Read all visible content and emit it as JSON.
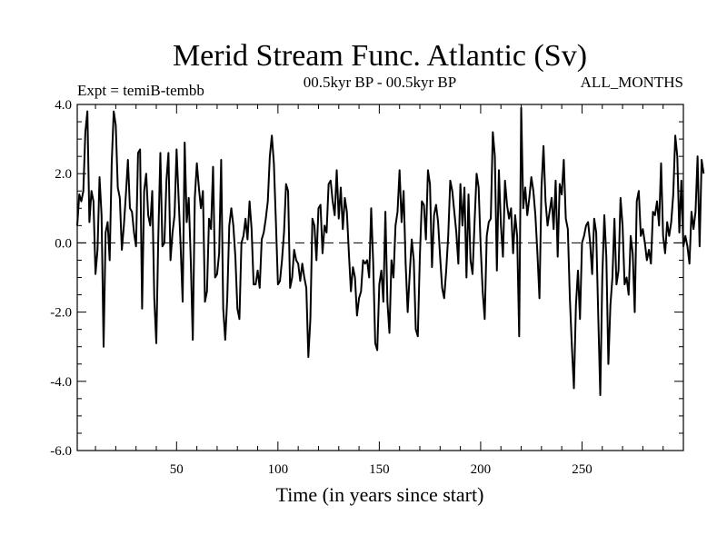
{
  "chart_data": {
    "type": "line",
    "title": "Merid Stream Func. Atlantic (Sv)",
    "header_left": "Expt = temiB-tembb",
    "header_center": "00.5kyr BP - 00.5kyr BP",
    "header_right": "ALL_MONTHS",
    "xlabel": "Time (in years since start)",
    "ylabel": "",
    "xlim": [
      1,
      300
    ],
    "ylim": [
      -6.0,
      4.0
    ],
    "xticks": [
      50,
      100,
      150,
      200,
      250
    ],
    "yticks": [
      -6.0,
      -4.0,
      -2.0,
      0.0,
      2.0,
      4.0
    ],
    "ytick_labels": [
      "-6.0",
      "-4.0",
      "-2.0",
      "0.0",
      "2.0",
      "4.0"
    ],
    "zero_line": true,
    "grid": false,
    "series": [
      {
        "values": [
          0.5,
          1.4,
          1.2,
          1.5,
          3.2,
          3.8,
          0.6,
          1.5,
          1.2,
          -0.9,
          -0.2,
          1.9,
          0.8,
          -3.0,
          0.3,
          0.6,
          -0.5,
          2.3,
          3.8,
          3.4,
          1.6,
          1.3,
          -0.2,
          0.5,
          1.4,
          2.4,
          1.0,
          0.9,
          0.3,
          -0.1,
          2.6,
          2.7,
          -1.9,
          1.5,
          2.0,
          0.8,
          0.5,
          1.5,
          -1.6,
          -2.9,
          0.2,
          2.6,
          -0.1,
          0.0,
          1.8,
          2.6,
          -0.5,
          0.3,
          0.8,
          2.7,
          1.3,
          -0.1,
          -1.7,
          2.9,
          0.6,
          1.3,
          -0.5,
          -2.8,
          1.3,
          2.3,
          1.6,
          1.0,
          1.5,
          -1.7,
          -1.4,
          0.7,
          0.4,
          2.2,
          -1.0,
          -0.9,
          -0.3,
          2.4,
          -1.9,
          -2.8,
          -1.6,
          0.5,
          1.0,
          0.5,
          -0.4,
          -1.9,
          -2.2,
          0.0,
          0.2,
          0.7,
          0.1,
          1.2,
          0.4,
          -1.2,
          -1.2,
          -0.8,
          -1.3,
          0.1,
          0.3,
          0.7,
          1.2,
          2.5,
          3.1,
          2.3,
          0.6,
          -1.2,
          -1.1,
          -0.5,
          0.3,
          1.7,
          1.5,
          -1.3,
          -1.0,
          -0.2,
          -0.5,
          -0.6,
          -1.1,
          -0.6,
          -1.0,
          -1.3,
          -3.3,
          -2.2,
          0.7,
          0.5,
          -0.5,
          1.0,
          1.1,
          -0.3,
          0.5,
          0.3,
          1.7,
          1.8,
          1.2,
          0.8,
          2.1,
          0.7,
          1.6,
          0.4,
          1.3,
          0.9,
          -0.3,
          -1.4,
          -0.7,
          -1.0,
          -2.1,
          -1.6,
          -1.4,
          -0.5,
          -0.6,
          -0.5,
          -1.0,
          1.0,
          -0.6,
          -2.9,
          -3.1,
          -1.2,
          -0.8,
          -1.7,
          0.9,
          -1.7,
          -2.6,
          -0.5,
          -1.0,
          0.5,
          0.9,
          2.1,
          0.6,
          1.5,
          -0.6,
          -2.0,
          -0.9,
          0.1,
          -0.5,
          -2.5,
          -2.7,
          -0.4,
          1.2,
          1.1,
          0.1,
          2.1,
          1.7,
          -0.7,
          0.8,
          1.1,
          0.6,
          -0.4,
          -1.3,
          -1.6,
          -0.8,
          0.2,
          1.8,
          1.5,
          0.9,
          0.3,
          -0.6,
          1.7,
          0.5,
          1.6,
          -1.0,
          1.4,
          -0.5,
          -0.9,
          0.6,
          2.0,
          1.6,
          -0.1,
          -1.4,
          -2.2,
          0.2,
          0.6,
          0.7,
          3.2,
          2.5,
          -0.8,
          2.1,
          0.5,
          -0.4,
          1.8,
          1.1,
          0.7,
          1.0,
          -0.3,
          0.8,
          0.2,
          -2.7,
          3.9,
          1.0,
          1.6,
          0.8,
          1.3,
          1.9,
          1.5,
          0.8,
          -0.3,
          -1.6,
          1.6,
          2.8,
          1.2,
          0.5,
          0.9,
          1.3,
          0.4,
          1.8,
          -0.4,
          1.7,
          1.4,
          2.4,
          0.7,
          0.4,
          -1.6,
          -3.0,
          -4.2,
          -1.8,
          -0.8,
          -2.2,
          0.0,
          0.2,
          0.5,
          0.6,
          0.0,
          -0.9,
          0.7,
          0.3,
          -2.1,
          -4.4,
          -1.0,
          0.8,
          -0.4,
          -3.5,
          -1.8,
          -1.0,
          0.7,
          -1.2,
          -0.8,
          1.3,
          0.5,
          -1.2,
          -1.0,
          -1.5,
          0.2,
          -0.3,
          -2.0,
          1.2,
          1.5,
          0.2,
          0.4,
          0.0,
          -0.5,
          -0.2,
          -0.6,
          0.9,
          0.8,
          1.2,
          0.5,
          2.3,
          0.2,
          -0.3,
          0.6,
          0.2,
          0.6,
          1.4,
          3.1,
          2.5,
          0.3,
          1.8,
          -0.1,
          0.2,
          -0.1,
          -0.6,
          0.9,
          0.4,
          0.9,
          2.5,
          -0.1,
          2.4,
          2.0
        ]
      }
    ]
  }
}
